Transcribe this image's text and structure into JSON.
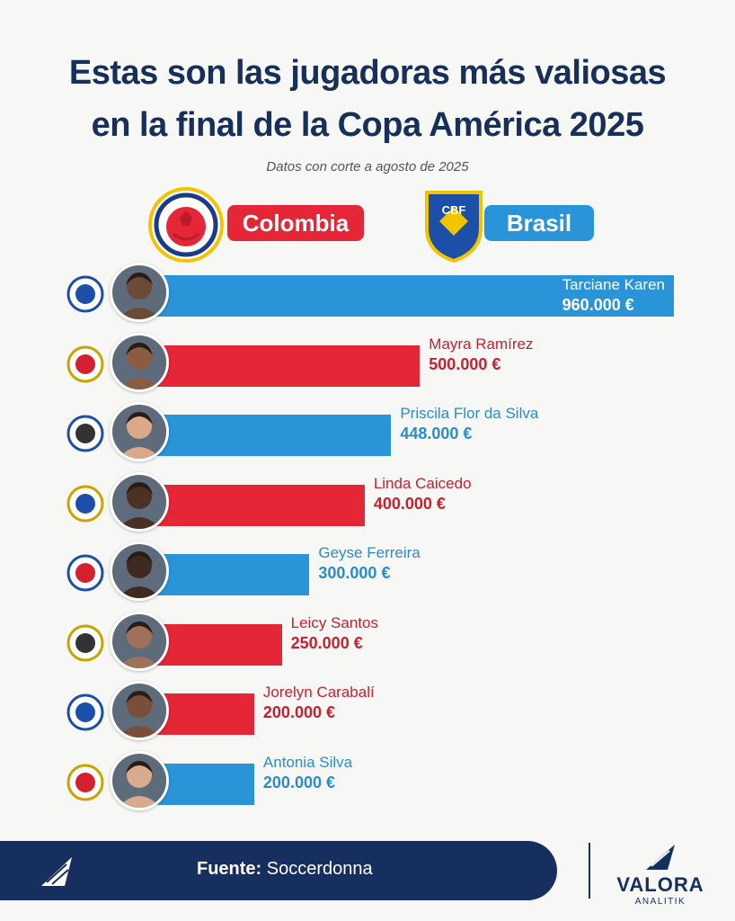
{
  "title_line1": "Estas son las jugadoras más valiosas",
  "title_line2": "en la final de la Copa América 2025",
  "subtitle": "Datos con corte a agosto de 2025",
  "legend": {
    "colombia": {
      "label": "Colombia",
      "color": "#e52637"
    },
    "brasil": {
      "label": "Brasil",
      "color": "#2994d8"
    },
    "crest_text": "CBF"
  },
  "chart_data": {
    "type": "bar",
    "orientation": "horizontal",
    "title": "Estas son las jugadoras más valiosas en la final de la Copa América 2025",
    "unit": "€",
    "xlim": [
      0,
      960000
    ],
    "series": [
      {
        "name": "Colombia",
        "color": "#e52637"
      },
      {
        "name": "Brasil",
        "color": "#2994d8"
      }
    ],
    "players": [
      {
        "name": "Tarciane Karen",
        "value": 960000,
        "value_label": "960.000 €",
        "team": "Brasil",
        "club": "club-crest-icon"
      },
      {
        "name": "Mayra Ramírez",
        "value": 500000,
        "value_label": "500.000 €",
        "team": "Colombia",
        "club": "club-crest-icon"
      },
      {
        "name": "Priscila Flor da Silva",
        "value": 448000,
        "value_label": "448.000 €",
        "team": "Brasil",
        "club": "club-crest-icon"
      },
      {
        "name": "Linda Caicedo",
        "value": 400000,
        "value_label": "400.000 €",
        "team": "Colombia",
        "club": "club-crest-icon"
      },
      {
        "name": "Geyse Ferreira",
        "value": 300000,
        "value_label": "300.000 €",
        "team": "Brasil",
        "club": "club-crest-icon"
      },
      {
        "name": "Leicy Santos",
        "value": 250000,
        "value_label": "250.000 €",
        "team": "Colombia",
        "club": "club-crest-icon"
      },
      {
        "name": "Jorelyn Carabalí",
        "value": 200000,
        "value_label": "200.000 €",
        "team": "Colombia",
        "club": "club-crest-icon"
      },
      {
        "name": "Antonia Silva",
        "value": 200000,
        "value_label": "200.000 €",
        "team": "Brasil",
        "club": "club-crest-icon"
      }
    ]
  },
  "footer": {
    "source_label": "Fuente:",
    "source_value": " Soccerdonna",
    "brand_name": "VALORA",
    "brand_sub": "ANALITIK"
  }
}
